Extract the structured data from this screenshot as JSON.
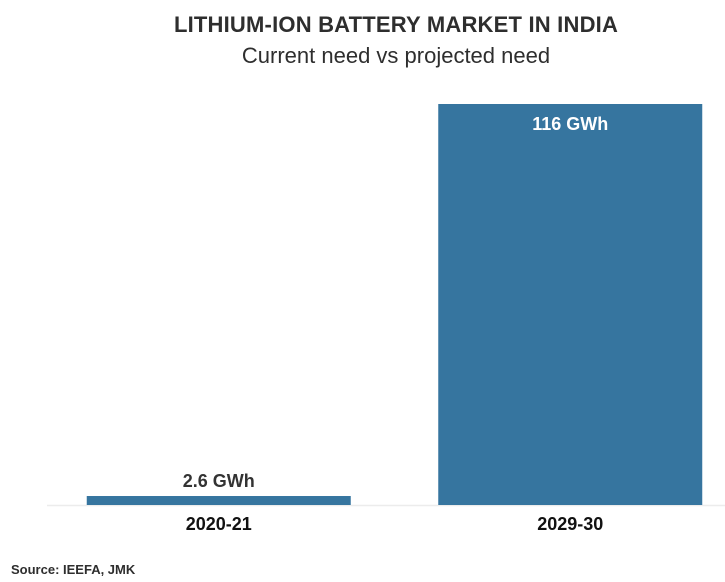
{
  "chart_data": {
    "type": "bar",
    "title": "LITHIUM-ION BATTERY MARKET IN INDIA",
    "subtitle": "Current need vs projected need",
    "categories": [
      "2020-21",
      "2029-30"
    ],
    "values": [
      2.6,
      116
    ],
    "unit": "GWh",
    "data_labels": [
      "2.6 GWh",
      "116 GWh"
    ],
    "xlabel": "",
    "ylabel": "",
    "ylim": [
      0,
      116
    ],
    "grid": false,
    "legend": "none",
    "bar_color": "#36759f",
    "source": "Source: IEEFA, JMK"
  }
}
